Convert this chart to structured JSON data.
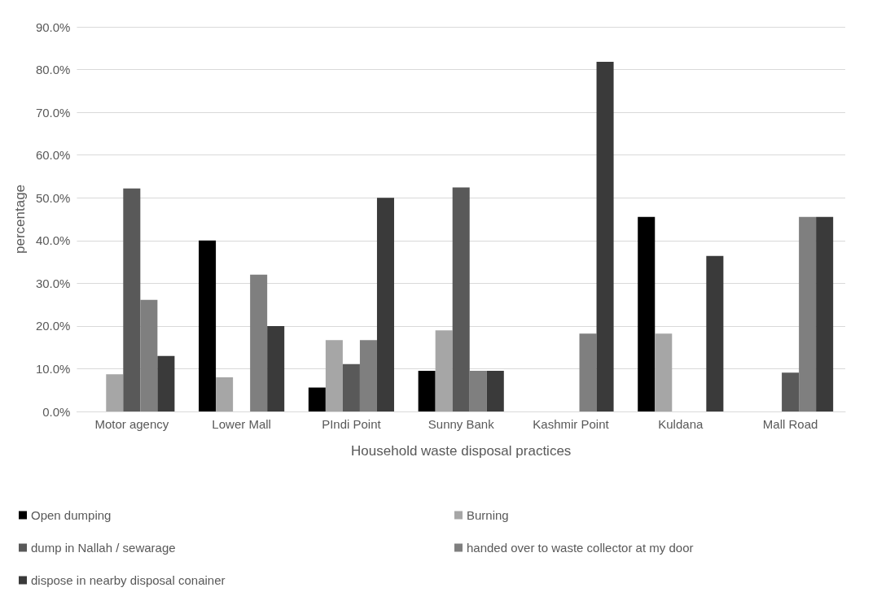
{
  "chart_data": {
    "type": "bar",
    "xlabel": "Household waste disposal practices",
    "ylabel": "percentage",
    "categories": [
      "Motor agency",
      "Lower Mall",
      "PIndi Point",
      "Sunny Bank",
      "Kashmir Point",
      "Kuldana",
      "Mall Road"
    ],
    "series": [
      {
        "name": "Open dumping",
        "color": "#000000",
        "values": [
          0,
          40,
          5.6,
          9.5,
          0,
          45.5,
          0
        ]
      },
      {
        "name": "Burning",
        "color": "#a6a6a6",
        "values": [
          8.7,
          8,
          16.7,
          19,
          0,
          18.2,
          0
        ]
      },
      {
        "name": "dump in Nallah / sewarage",
        "color": "#595959",
        "values": [
          52.2,
          0,
          11.1,
          52.4,
          0,
          0,
          9.1
        ]
      },
      {
        "name": "handed over to waste collector at my door",
        "color": "#7f7f7f",
        "values": [
          26.1,
          32,
          16.7,
          9.5,
          18.2,
          0,
          45.5
        ]
      },
      {
        "name": "dispose in nearby disposal conainer",
        "color": "#3a3a3a",
        "values": [
          13,
          20,
          50,
          9.5,
          81.8,
          36.4,
          45.5
        ]
      }
    ],
    "ylim": [
      0,
      90
    ],
    "yticks": [
      {
        "value": 0,
        "label": "0.0%"
      },
      {
        "value": 10,
        "label": "10.0%"
      },
      {
        "value": 20,
        "label": "20.0%"
      },
      {
        "value": 30,
        "label": "30.0%"
      },
      {
        "value": 40,
        "label": "40.0%"
      },
      {
        "value": 50,
        "label": "50.0%"
      },
      {
        "value": 60,
        "label": "60.0%"
      },
      {
        "value": 70,
        "label": "70.0%"
      },
      {
        "value": 80,
        "label": "80.0%"
      },
      {
        "value": 90,
        "label": "90.0%"
      }
    ],
    "grid": "y",
    "legend": "bottom"
  }
}
